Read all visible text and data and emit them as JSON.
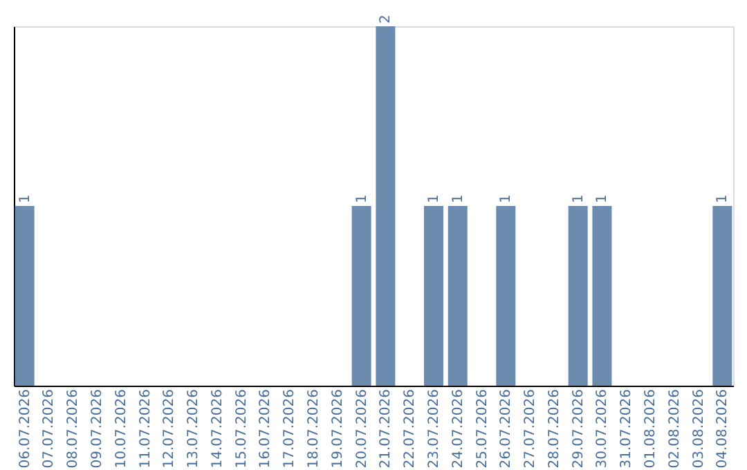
{
  "chart_data": {
    "type": "bar",
    "categories": [
      "06.07.2026",
      "07.07.2026",
      "08.07.2026",
      "09.07.2026",
      "10.07.2026",
      "11.07.2026",
      "12.07.2026",
      "13.07.2026",
      "14.07.2026",
      "15.07.2026",
      "16.07.2026",
      "17.07.2026",
      "18.07.2026",
      "19.07.2026",
      "20.07.2026",
      "21.07.2026",
      "22.07.2026",
      "23.07.2026",
      "24.07.2026",
      "25.07.2026",
      "26.07.2026",
      "27.07.2026",
      "28.07.2026",
      "29.07.2026",
      "30.07.2026",
      "31.07.2026",
      "01.08.2026",
      "02.08.2026",
      "03.08.2026",
      "04.08.2026"
    ],
    "values": [
      1,
      0,
      0,
      0,
      0,
      0,
      0,
      0,
      0,
      0,
      0,
      0,
      0,
      0,
      1,
      2,
      0,
      1,
      1,
      0,
      1,
      0,
      0,
      1,
      1,
      0,
      0,
      0,
      0,
      1
    ],
    "value_labels": [
      "1",
      null,
      null,
      null,
      null,
      null,
      null,
      null,
      null,
      null,
      null,
      null,
      null,
      null,
      "1",
      "2",
      null,
      "1",
      "1",
      null,
      "1",
      null,
      null,
      "1",
      "1",
      null,
      null,
      null,
      null,
      "1"
    ],
    "color": "#6b8cae",
    "ylim": [
      0,
      2
    ],
    "tick_labels": "x",
    "grid": false
  }
}
